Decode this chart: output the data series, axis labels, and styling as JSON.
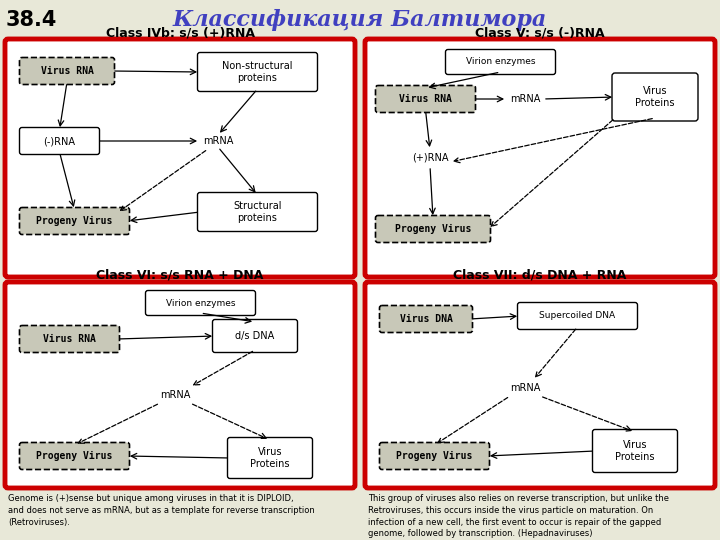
{
  "title": "Классификация Балтимора",
  "slide_number": "38.4",
  "title_color": "#4040c0",
  "background_color": "#e8e8d8",
  "border_color": "#cc0000",
  "class_IVb_title": "Class IVb: s/s (+)RNA",
  "class_V_title": "Class V: s/s (-)RNA",
  "class_VI_title": "Class VI: s/s RNA + DNA",
  "class_VII_title": "Class VII: d/s DNA + RNA",
  "footer_left": "Genome is (+)sense but unique among viruses in that it is DIPLOID,\nand does not serve as mRNA, but as a template for reverse transcription\n(Retroviruses).",
  "footer_right": "This group of viruses also relies on reverse transcription, but unlike the\nRetroviruses, this occurs inside the virus particle on maturation. On\ninfection of a new cell, the first event to occur is repair of the gapped\ngenome, followed by transcription. (Hepadnaviruses)"
}
